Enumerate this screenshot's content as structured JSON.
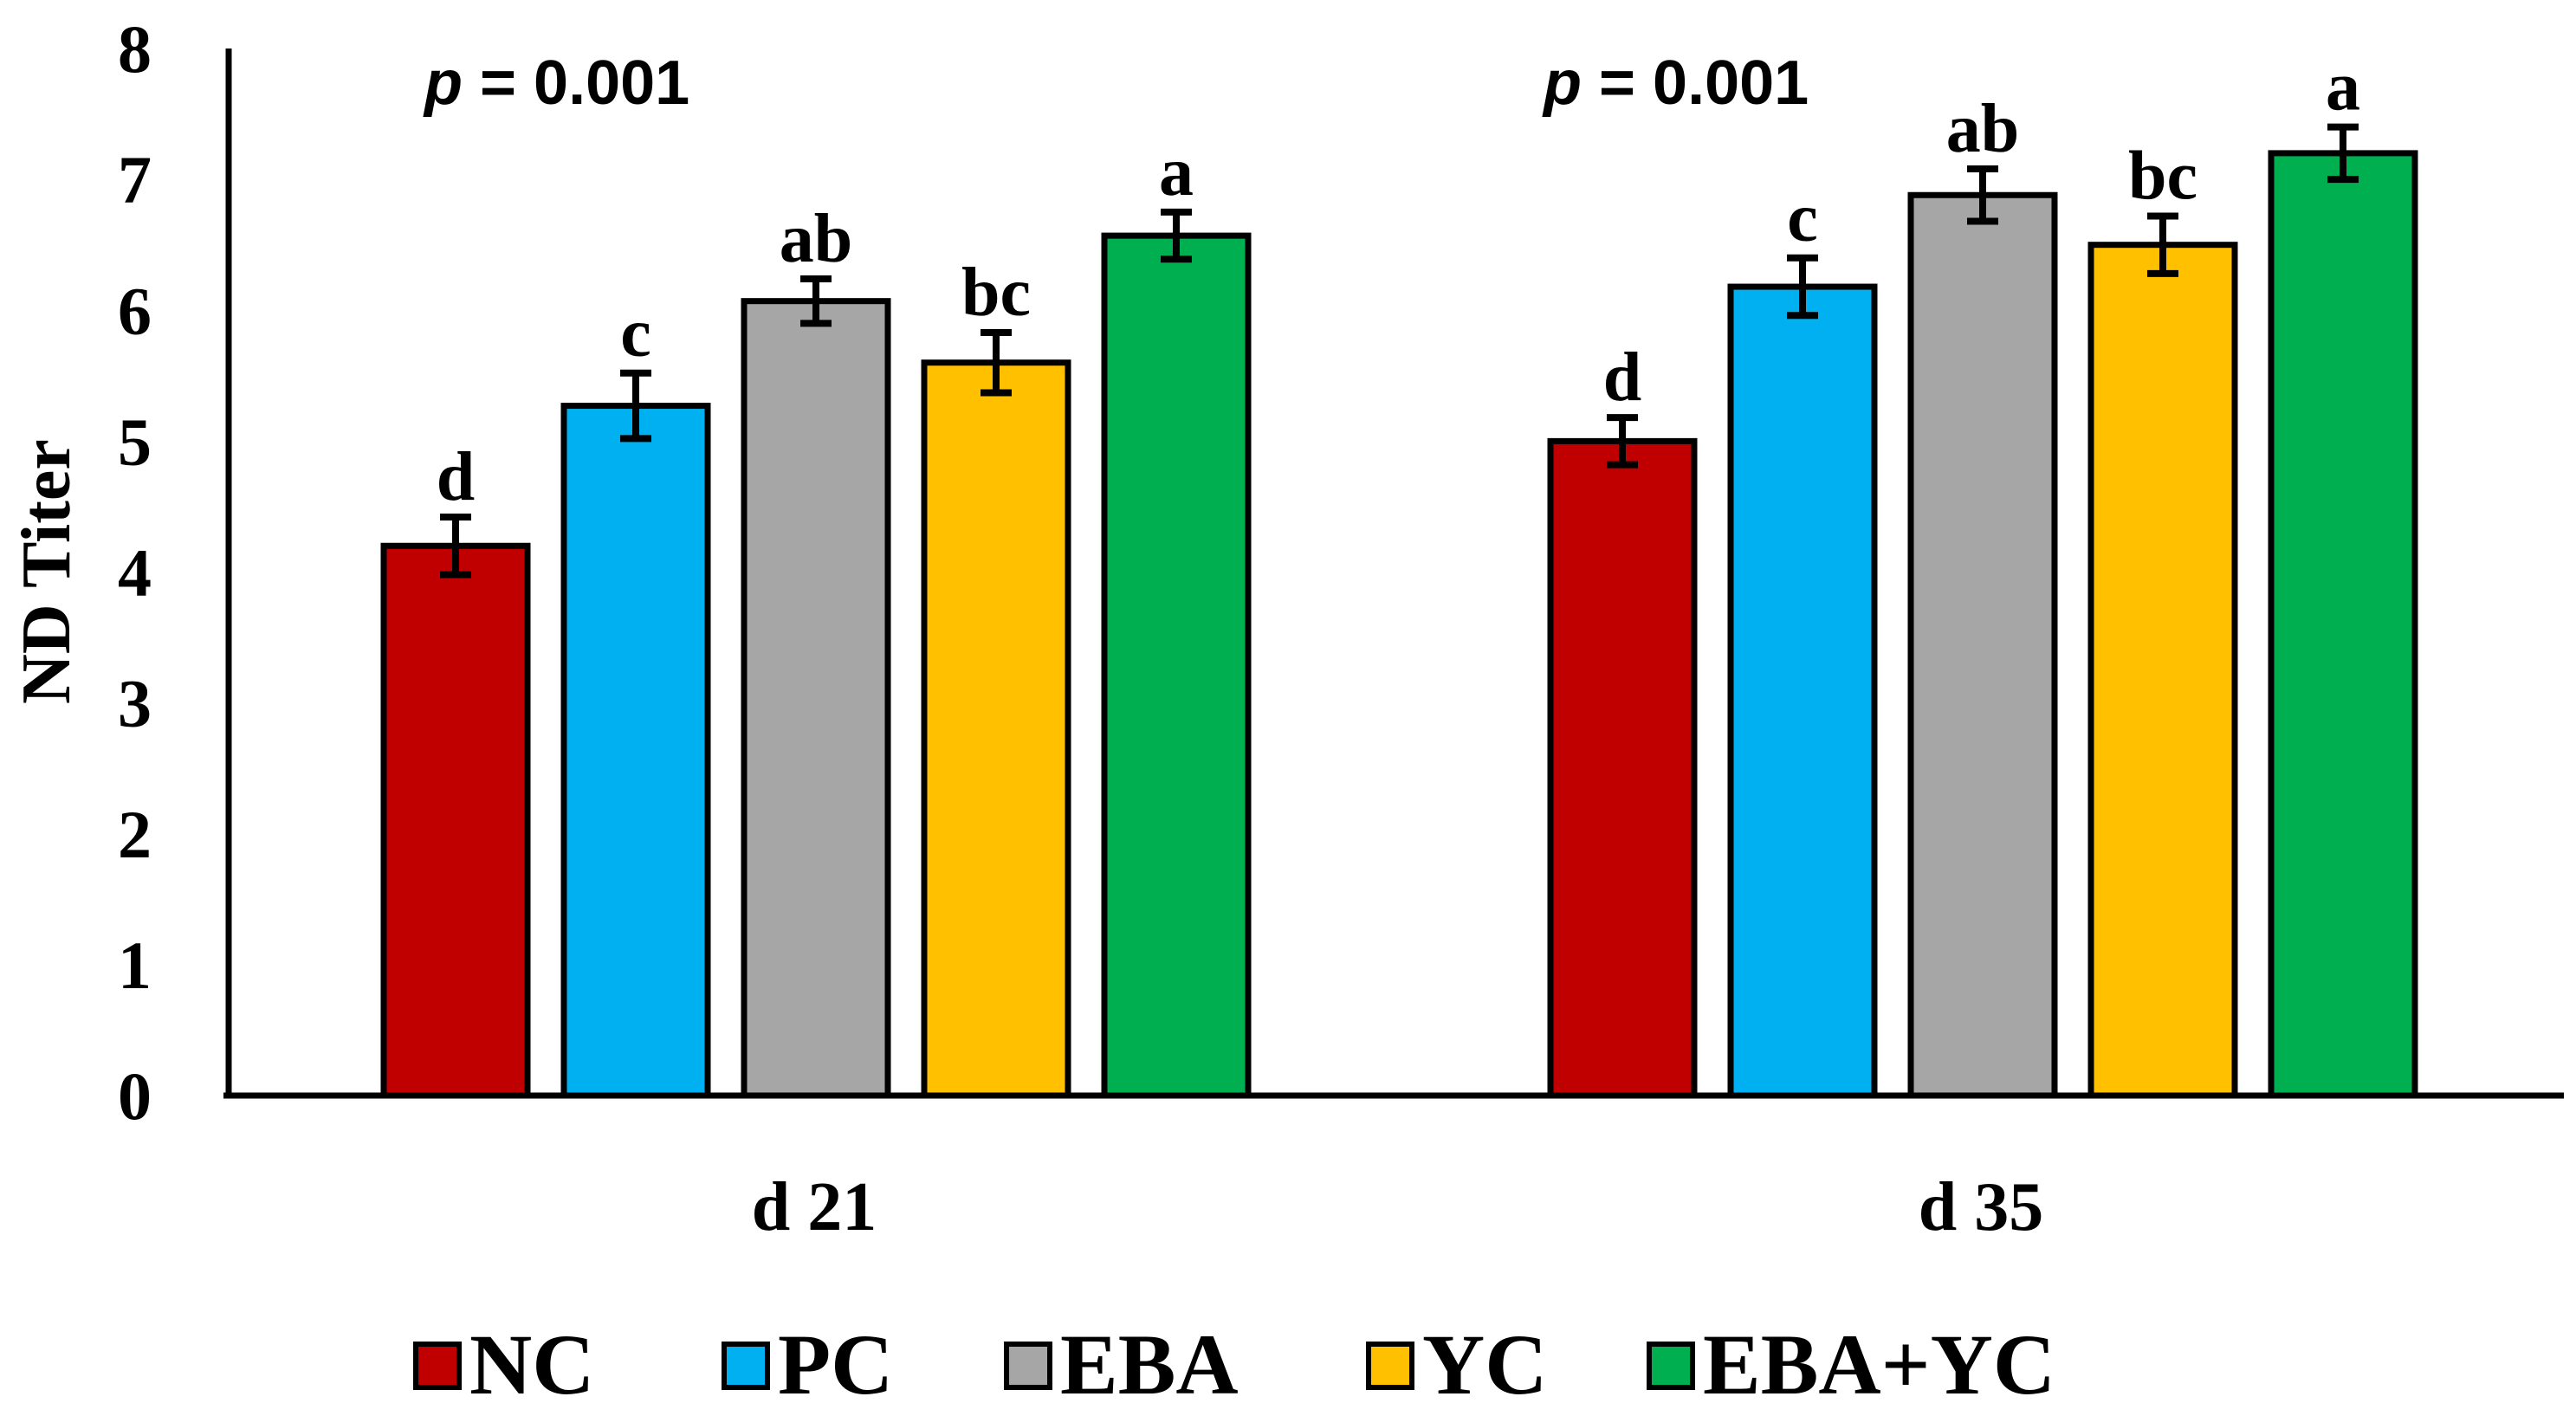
{
  "chart_data": {
    "type": "bar",
    "ylabel": "ND Titer",
    "xlabel": "",
    "ylim": [
      0,
      8
    ],
    "yticks": [
      "0",
      "1",
      "2",
      "3",
      "4",
      "5",
      "6",
      "7",
      "8"
    ],
    "categories": [
      "d 21",
      "d 35"
    ],
    "p_prefix": "p",
    "p_suffix": " = 0.001",
    "series": [
      {
        "name": "NC",
        "color": "#C00000",
        "values": [
          4.2,
          5.0
        ],
        "errors": [
          0.22,
          0.18
        ],
        "letters": [
          "d",
          "d"
        ]
      },
      {
        "name": "PC",
        "color": "#00B0F0",
        "values": [
          5.27,
          6.18
        ],
        "errors": [
          0.25,
          0.22
        ],
        "letters": [
          "c",
          "c"
        ]
      },
      {
        "name": "EBA",
        "color": "#A6A6A6",
        "values": [
          6.07,
          6.88
        ],
        "errors": [
          0.17,
          0.2
        ],
        "letters": [
          "ab",
          "ab"
        ]
      },
      {
        "name": "YC",
        "color": "#FFC000",
        "values": [
          5.6,
          6.5
        ],
        "errors": [
          0.23,
          0.22
        ],
        "letters": [
          "bc",
          "bc"
        ]
      },
      {
        "name": "EBA+YC",
        "color": "#00B050",
        "values": [
          6.57,
          7.2
        ],
        "errors": [
          0.18,
          0.2
        ],
        "letters": [
          "a",
          "a"
        ]
      }
    ],
    "legend_position": "bottom",
    "grid": false
  }
}
